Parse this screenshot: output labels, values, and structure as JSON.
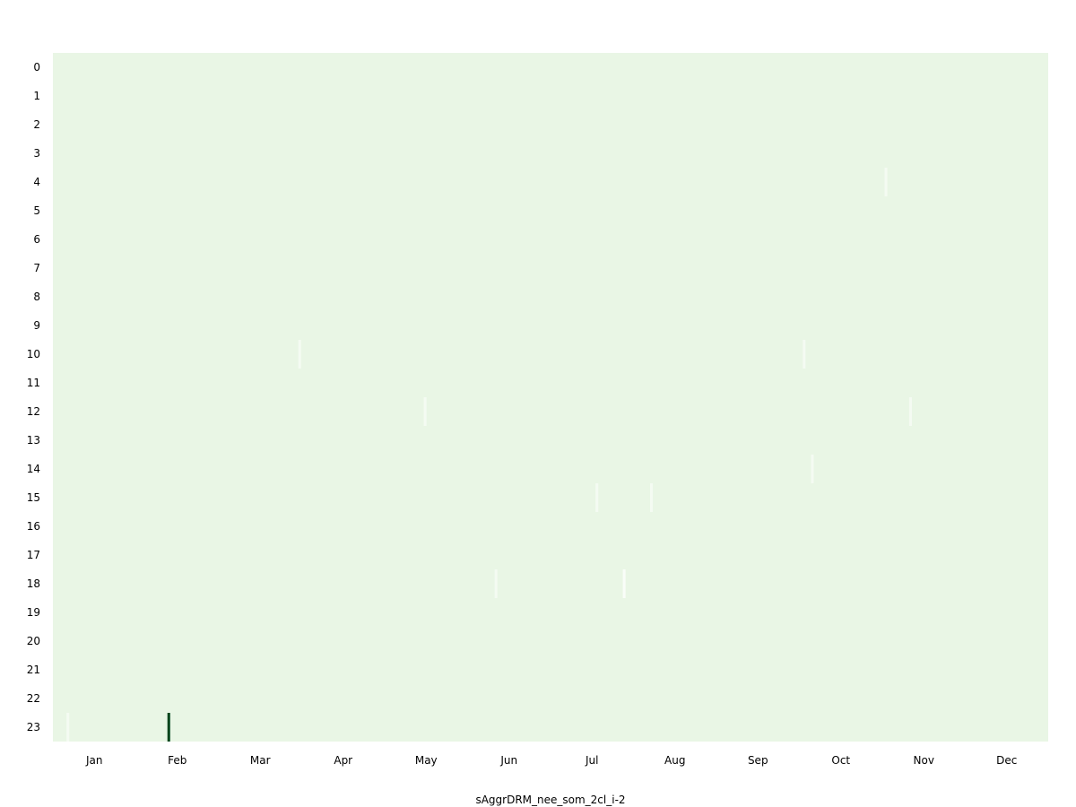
{
  "chart_data": {
    "type": "heatmap",
    "title": "",
    "xlabel": "sAggrDRM_nee_som_2cl_i-2",
    "ylabel": "",
    "y_categories": [
      "0",
      "1",
      "2",
      "3",
      "4",
      "5",
      "6",
      "7",
      "8",
      "9",
      "10",
      "11",
      "12",
      "13",
      "14",
      "15",
      "16",
      "17",
      "18",
      "19",
      "20",
      "21",
      "22",
      "23"
    ],
    "x_categories": [
      "Jan",
      "Feb",
      "Mar",
      "Apr",
      "May",
      "Jun",
      "Jul",
      "Aug",
      "Sep",
      "Oct",
      "Nov",
      "Dec"
    ],
    "day_range": [
      1,
      365
    ],
    "background_color": "#e9f6e5",
    "cells": [
      {
        "day": 6,
        "hour": 23,
        "color": "#f4fbf2"
      },
      {
        "day": 43,
        "hour": 23,
        "color": "#00441b"
      },
      {
        "day": 91,
        "hour": 10,
        "color": "#f4fbf2"
      },
      {
        "day": 137,
        "hour": 12,
        "color": "#f4fbf2"
      },
      {
        "day": 163,
        "hour": 18,
        "color": "#f4fbf2"
      },
      {
        "day": 200,
        "hour": 15,
        "color": "#f4fbf2"
      },
      {
        "day": 210,
        "hour": 18,
        "color": "#f9fdf8"
      },
      {
        "day": 220,
        "hour": 15,
        "color": "#f4fbf2"
      },
      {
        "day": 276,
        "hour": 10,
        "color": "#f4fbf2"
      },
      {
        "day": 279,
        "hour": 14,
        "color": "#f4fbf2"
      },
      {
        "day": 306,
        "hour": 4,
        "color": "#f4fbf2"
      },
      {
        "day": 315,
        "hour": 12,
        "color": "#f4fbf2"
      }
    ]
  }
}
